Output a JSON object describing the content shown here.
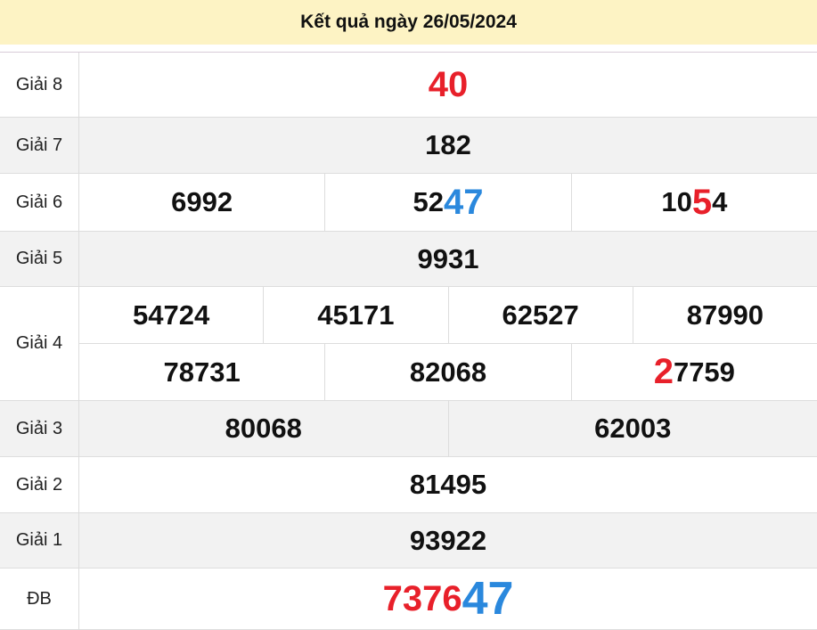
{
  "title": "Kết quả ngày 26/05/2024",
  "colors": {
    "header_bg": "#fdf3c4",
    "red": "#e8202a",
    "blue": "#2a88dd",
    "stripe": "#f2f2f2"
  },
  "rows": [
    {
      "label": "Giải 8",
      "gray": false,
      "h": 73,
      "lines": [
        [
          [
            {
              "t": "40",
              "c": "red big"
            }
          ]
        ]
      ]
    },
    {
      "label": "Giải 7",
      "gray": true,
      "h": 63,
      "lines": [
        [
          [
            {
              "t": "182",
              "c": ""
            }
          ]
        ]
      ]
    },
    {
      "label": "Giải 6",
      "gray": false,
      "h": 65,
      "lines": [
        [
          [
            {
              "t": "6992",
              "c": ""
            }
          ],
          [
            {
              "t": "52",
              "c": ""
            },
            {
              "t": "47",
              "c": "blue big"
            }
          ],
          [
            {
              "t": "10",
              "c": ""
            },
            {
              "t": "5",
              "c": "red big"
            },
            {
              "t": "4",
              "c": ""
            }
          ]
        ]
      ]
    },
    {
      "label": "Giải 5",
      "gray": true,
      "h": 62,
      "lines": [
        [
          [
            {
              "t": "9931",
              "c": ""
            }
          ]
        ]
      ]
    },
    {
      "label": "Giải 4",
      "gray": false,
      "h": 128,
      "lines": [
        [
          [
            {
              "t": "54724",
              "c": ""
            }
          ],
          [
            {
              "t": "45171",
              "c": ""
            }
          ],
          [
            {
              "t": "62527",
              "c": ""
            }
          ],
          [
            {
              "t": "87990",
              "c": ""
            }
          ]
        ],
        [
          [
            {
              "t": "78731",
              "c": ""
            }
          ],
          [
            {
              "t": "82068",
              "c": ""
            }
          ],
          [
            {
              "t": "2",
              "c": "red big"
            },
            {
              "t": "7759",
              "c": ""
            }
          ]
        ]
      ]
    },
    {
      "label": "Giải 3",
      "gray": true,
      "h": 63,
      "lines": [
        [
          [
            {
              "t": "80068",
              "c": ""
            }
          ],
          [
            {
              "t": "62003",
              "c": ""
            }
          ]
        ]
      ]
    },
    {
      "label": "Giải 2",
      "gray": false,
      "h": 63,
      "lines": [
        [
          [
            {
              "t": "81495",
              "c": ""
            }
          ]
        ]
      ]
    },
    {
      "label": "Giải 1",
      "gray": true,
      "h": 62,
      "lines": [
        [
          [
            {
              "t": "93922",
              "c": ""
            }
          ]
        ]
      ]
    },
    {
      "label": "ĐB",
      "gray": false,
      "h": 69,
      "lines": [
        [
          [
            {
              "t": "7376",
              "c": "red big"
            },
            {
              "t": "47",
              "c": "blue huge"
            }
          ]
        ]
      ]
    }
  ]
}
